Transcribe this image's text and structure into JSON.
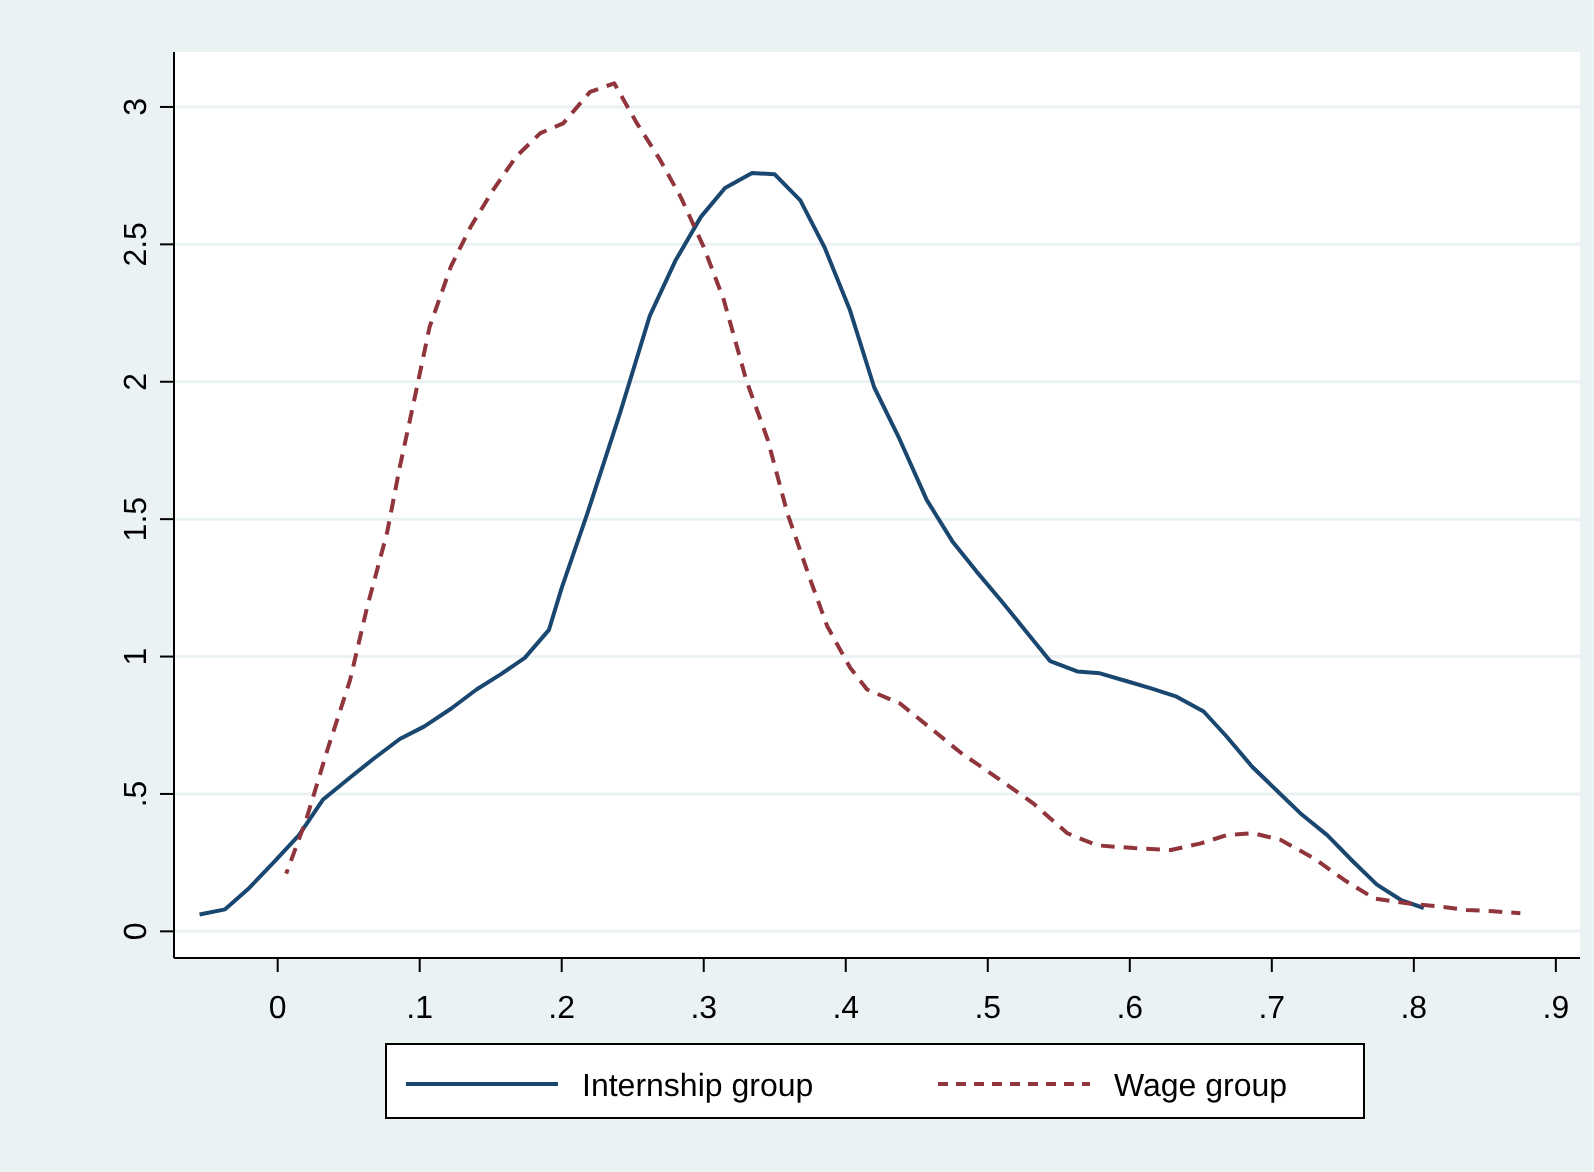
{
  "chart_data": {
    "type": "line",
    "xlim": [
      -0.073,
      0.917
    ],
    "ylim": [
      -0.097,
      3.2
    ],
    "xticks": [
      0,
      {
        "value": 0.1,
        "label": ".1"
      },
      {
        "value": 0.2,
        "label": ".2"
      },
      {
        "value": 0.3,
        "label": ".3"
      },
      {
        "value": 0.4,
        "label": ".4"
      },
      {
        "value": 0.5,
        "label": ".5"
      },
      {
        "value": 0.6,
        "label": ".6"
      },
      {
        "value": 0.7,
        "label": ".7"
      },
      {
        "value": 0.8,
        "label": ".8"
      },
      {
        "value": 0.9,
        "label": ".9"
      }
    ],
    "yticks": [
      0,
      {
        "value": 0.5,
        "label": ".5"
      },
      1,
      1.5,
      2,
      2.5,
      3
    ],
    "grid": "y",
    "legend": "bottom",
    "series": [
      {
        "name": "Internship group",
        "color": "#1a476f",
        "line_style": "solid",
        "x": [
          -0.055,
          -0.037,
          -0.021,
          -0.003,
          0.015,
          0.032,
          0.051,
          0.068,
          0.086,
          0.103,
          0.122,
          0.14,
          0.157,
          0.174,
          0.191,
          0.2,
          0.218,
          0.241,
          0.262,
          0.28,
          0.298,
          0.315,
          0.334,
          0.35,
          0.368,
          0.385,
          0.403,
          0.42,
          0.438,
          0.457,
          0.475,
          0.492,
          0.509,
          0.528,
          0.544,
          0.563,
          0.579,
          0.598,
          0.615,
          0.633,
          0.652,
          0.668,
          0.686,
          0.702,
          0.72,
          0.739,
          0.757,
          0.774,
          0.791,
          0.807
        ],
        "values": [
          0.061,
          0.08,
          0.153,
          0.25,
          0.35,
          0.48,
          0.56,
          0.63,
          0.7,
          0.745,
          0.81,
          0.88,
          0.935,
          0.995,
          1.097,
          1.25,
          1.52,
          1.885,
          2.24,
          2.44,
          2.6,
          2.705,
          2.76,
          2.755,
          2.66,
          2.49,
          2.26,
          1.98,
          1.79,
          1.57,
          1.42,
          1.31,
          1.206,
          1.085,
          0.983,
          0.946,
          0.939,
          0.91,
          0.884,
          0.854,
          0.8,
          0.71,
          0.6,
          0.52,
          0.43,
          0.35,
          0.255,
          0.17,
          0.114,
          0.085
        ]
      },
      {
        "name": "Wage group",
        "color": "#90353b",
        "line_style": "dashed",
        "x": [
          0.006,
          0.02,
          0.035,
          0.051,
          0.063,
          0.077,
          0.086,
          0.096,
          0.107,
          0.122,
          0.136,
          0.152,
          0.168,
          0.185,
          0.201,
          0.22,
          0.237,
          0.253,
          0.269,
          0.284,
          0.3,
          0.314,
          0.33,
          0.345,
          0.359,
          0.375,
          0.387,
          0.403,
          0.415,
          0.438,
          0.462,
          0.481,
          0.509,
          0.532,
          0.556,
          0.577,
          0.603,
          0.629,
          0.65,
          0.668,
          0.687,
          0.706,
          0.73,
          0.751,
          0.772,
          0.795,
          0.819,
          0.837,
          0.856,
          0.875
        ],
        "values": [
          0.21,
          0.405,
          0.66,
          0.915,
          1.18,
          1.45,
          1.69,
          1.93,
          2.2,
          2.42,
          2.565,
          2.7,
          2.82,
          2.905,
          2.94,
          3.055,
          3.086,
          2.94,
          2.81,
          2.67,
          2.49,
          2.3,
          2.005,
          1.79,
          1.52,
          1.28,
          1.11,
          0.96,
          0.88,
          0.83,
          0.73,
          0.65,
          0.55,
          0.466,
          0.357,
          0.313,
          0.303,
          0.296,
          0.32,
          0.35,
          0.357,
          0.333,
          0.265,
          0.187,
          0.12,
          0.102,
          0.09,
          0.078,
          0.073,
          0.066
        ]
      }
    ]
  }
}
